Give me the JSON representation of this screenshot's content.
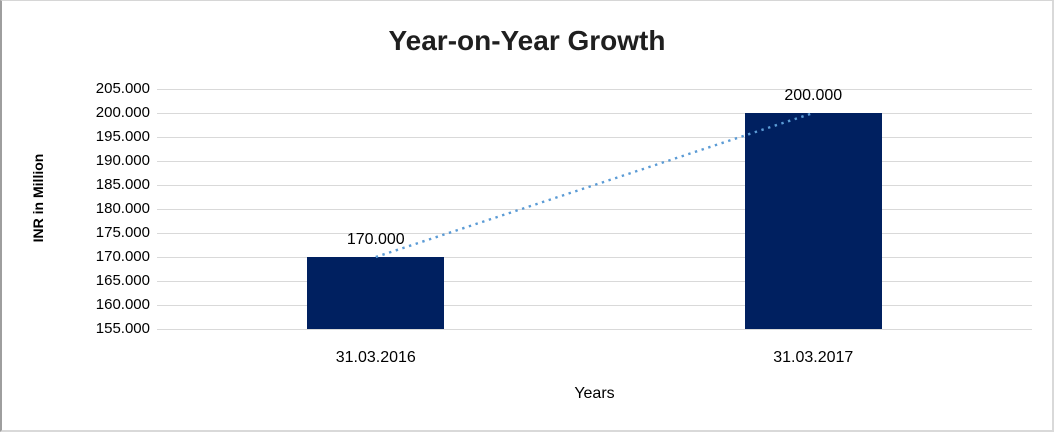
{
  "chart_data": {
    "type": "bar",
    "title": "Year-on-Year Growth",
    "xlabel": "Years",
    "ylabel": "INR in Million",
    "categories": [
      "31.03.2016",
      "31.03.2017"
    ],
    "series": [
      {
        "name": "INR in Million",
        "values": [
          170,
          200
        ]
      }
    ],
    "data_labels": [
      "170.000",
      "200.000"
    ],
    "y_ticks": [
      "205.000",
      "200.000",
      "195.000",
      "190.000",
      "185.000",
      "180.000",
      "175.000",
      "170.000",
      "165.000",
      "160.000",
      "155.000"
    ],
    "ylim": [
      155,
      205
    ],
    "grid": true,
    "legend": false,
    "bar_color": "#002060",
    "trendline": {
      "style": "dotted",
      "color": "#5B9BD5",
      "from_value": 170,
      "to_value": 200
    }
  }
}
